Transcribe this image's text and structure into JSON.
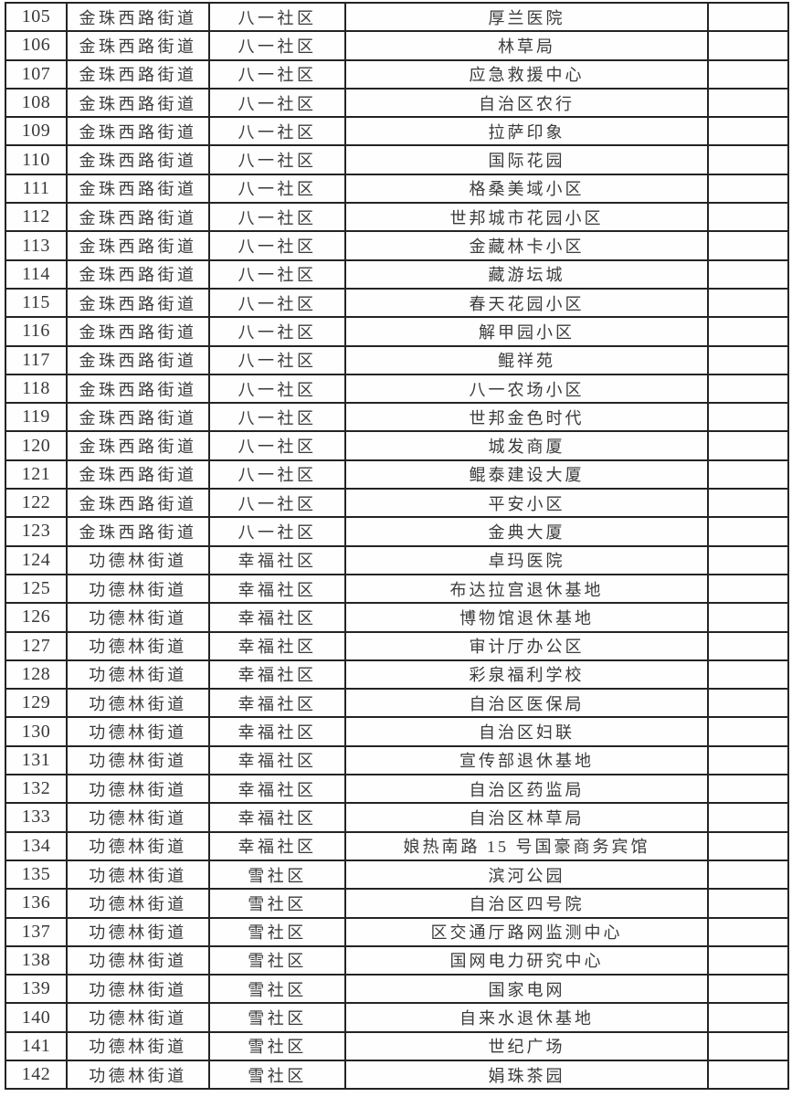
{
  "table": {
    "rows": [
      {
        "num": "105",
        "street": "金珠西路街道",
        "community": "八一社区",
        "place": "厚兰医院",
        "note": ""
      },
      {
        "num": "106",
        "street": "金珠西路街道",
        "community": "八一社区",
        "place": "林草局",
        "note": ""
      },
      {
        "num": "107",
        "street": "金珠西路街道",
        "community": "八一社区",
        "place": "应急救援中心",
        "note": ""
      },
      {
        "num": "108",
        "street": "金珠西路街道",
        "community": "八一社区",
        "place": "自治区农行",
        "note": ""
      },
      {
        "num": "109",
        "street": "金珠西路街道",
        "community": "八一社区",
        "place": "拉萨印象",
        "note": ""
      },
      {
        "num": "110",
        "street": "金珠西路街道",
        "community": "八一社区",
        "place": "国际花园",
        "note": ""
      },
      {
        "num": "111",
        "street": "金珠西路街道",
        "community": "八一社区",
        "place": "格桑美域小区",
        "note": ""
      },
      {
        "num": "112",
        "street": "金珠西路街道",
        "community": "八一社区",
        "place": "世邦城市花园小区",
        "note": ""
      },
      {
        "num": "113",
        "street": "金珠西路街道",
        "community": "八一社区",
        "place": "金藏林卡小区",
        "note": ""
      },
      {
        "num": "114",
        "street": "金珠西路街道",
        "community": "八一社区",
        "place": "藏游坛城",
        "note": ""
      },
      {
        "num": "115",
        "street": "金珠西路街道",
        "community": "八一社区",
        "place": "春天花园小区",
        "note": ""
      },
      {
        "num": "116",
        "street": "金珠西路街道",
        "community": "八一社区",
        "place": "解甲园小区",
        "note": ""
      },
      {
        "num": "117",
        "street": "金珠西路街道",
        "community": "八一社区",
        "place": "鲲祥苑",
        "note": ""
      },
      {
        "num": "118",
        "street": "金珠西路街道",
        "community": "八一社区",
        "place": "八一农场小区",
        "note": ""
      },
      {
        "num": "119",
        "street": "金珠西路街道",
        "community": "八一社区",
        "place": "世邦金色时代",
        "note": ""
      },
      {
        "num": "120",
        "street": "金珠西路街道",
        "community": "八一社区",
        "place": "城发商厦",
        "note": ""
      },
      {
        "num": "121",
        "street": "金珠西路街道",
        "community": "八一社区",
        "place": "鲲泰建设大厦",
        "note": ""
      },
      {
        "num": "122",
        "street": "金珠西路街道",
        "community": "八一社区",
        "place": "平安小区",
        "note": ""
      },
      {
        "num": "123",
        "street": "金珠西路街道",
        "community": "八一社区",
        "place": "金典大厦",
        "note": ""
      },
      {
        "num": "124",
        "street": "功德林街道",
        "community": "幸福社区",
        "place": "卓玛医院",
        "note": ""
      },
      {
        "num": "125",
        "street": "功德林街道",
        "community": "幸福社区",
        "place": "布达拉宫退休基地",
        "note": ""
      },
      {
        "num": "126",
        "street": "功德林街道",
        "community": "幸福社区",
        "place": "博物馆退休基地",
        "note": ""
      },
      {
        "num": "127",
        "street": "功德林街道",
        "community": "幸福社区",
        "place": "审计厅办公区",
        "note": ""
      },
      {
        "num": "128",
        "street": "功德林街道",
        "community": "幸福社区",
        "place": "彩泉福利学校",
        "note": ""
      },
      {
        "num": "129",
        "street": "功德林街道",
        "community": "幸福社区",
        "place": "自治区医保局",
        "note": ""
      },
      {
        "num": "130",
        "street": "功德林街道",
        "community": "幸福社区",
        "place": "自治区妇联",
        "note": ""
      },
      {
        "num": "131",
        "street": "功德林街道",
        "community": "幸福社区",
        "place": "宣传部退休基地",
        "note": ""
      },
      {
        "num": "132",
        "street": "功德林街道",
        "community": "幸福社区",
        "place": "自治区药监局",
        "note": ""
      },
      {
        "num": "133",
        "street": "功德林街道",
        "community": "幸福社区",
        "place": "自治区林草局",
        "note": ""
      },
      {
        "num": "134",
        "street": "功德林街道",
        "community": "幸福社区",
        "place": "娘热南路 15 号国豪商务宾馆",
        "note": ""
      },
      {
        "num": "135",
        "street": "功德林街道",
        "community": "雪社区",
        "place": "滨河公园",
        "note": ""
      },
      {
        "num": "136",
        "street": "功德林街道",
        "community": "雪社区",
        "place": "自治区四号院",
        "note": ""
      },
      {
        "num": "137",
        "street": "功德林街道",
        "community": "雪社区",
        "place": "区交通厅路网监测中心",
        "note": ""
      },
      {
        "num": "138",
        "street": "功德林街道",
        "community": "雪社区",
        "place": "国网电力研究中心",
        "note": ""
      },
      {
        "num": "139",
        "street": "功德林街道",
        "community": "雪社区",
        "place": "国家电网",
        "note": ""
      },
      {
        "num": "140",
        "street": "功德林街道",
        "community": "雪社区",
        "place": "自来水退休基地",
        "note": ""
      },
      {
        "num": "141",
        "street": "功德林街道",
        "community": "雪社区",
        "place": "世纪广场",
        "note": ""
      },
      {
        "num": "142",
        "street": "功德林街道",
        "community": "雪社区",
        "place": "娟珠茶园",
        "note": ""
      }
    ]
  }
}
